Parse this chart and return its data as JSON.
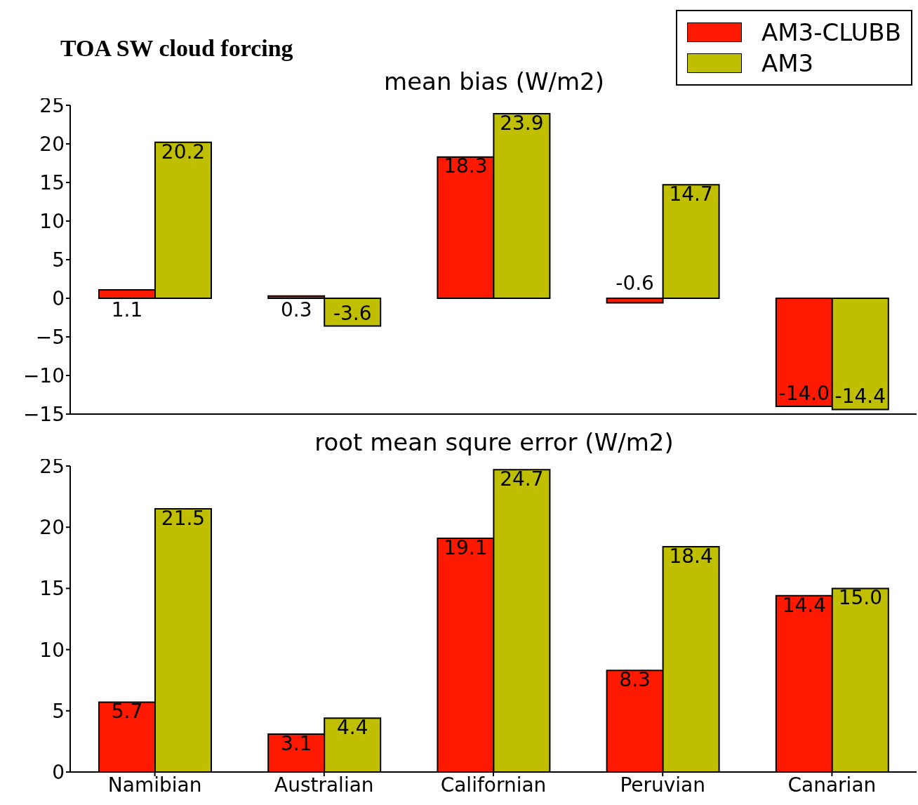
{
  "chart_data": [
    {
      "type": "bar",
      "title": "mean bias (W/m2)",
      "annotations": [
        "TOA SW cloud forcing"
      ],
      "categories": [
        null,
        null,
        null,
        null,
        null
      ],
      "series": [
        {
          "name": "AM3-CLUBB",
          "color": "#fe1a00",
          "values": [
            1.1,
            0.3,
            18.3,
            -0.6,
            -14.0
          ],
          "value_labels": [
            "1.1",
            "0.3",
            "18.3",
            "-0.6",
            "-14.0"
          ]
        },
        {
          "name": "AM3",
          "color": "#bfbf00",
          "values": [
            20.2,
            -3.6,
            23.9,
            14.7,
            -14.4
          ]
        }
      ],
      "ylim": [
        -15,
        25
      ],
      "yticks": [
        -15,
        -10,
        -5,
        0,
        5,
        10,
        15,
        20,
        25
      ],
      "grid": false,
      "legend": "top right",
      "data_labels": true,
      "tick_labels": "y"
    },
    {
      "type": "bar",
      "title": "root mean squre error (W/m2)",
      "categories": [
        "Namibian",
        "Australian",
        "Californian",
        "Peruvian",
        "Canarian"
      ],
      "series": [
        {
          "color": "#fe1a00",
          "values": [
            5.7,
            3.1,
            19.1,
            8.3,
            14.4
          ]
        },
        {
          "color": "#bfbf00",
          "values": [
            21.5,
            4.4,
            24.7,
            18.4,
            15.0
          ],
          "value_labels": [
            "21.5",
            "4.4",
            "24.7",
            "18.4",
            "15.0"
          ]
        }
      ],
      "ylim": [
        0,
        25
      ],
      "yticks": [
        0,
        5,
        10,
        15,
        20,
        25
      ],
      "grid": false,
      "legend": false,
      "data_labels": true
    }
  ]
}
